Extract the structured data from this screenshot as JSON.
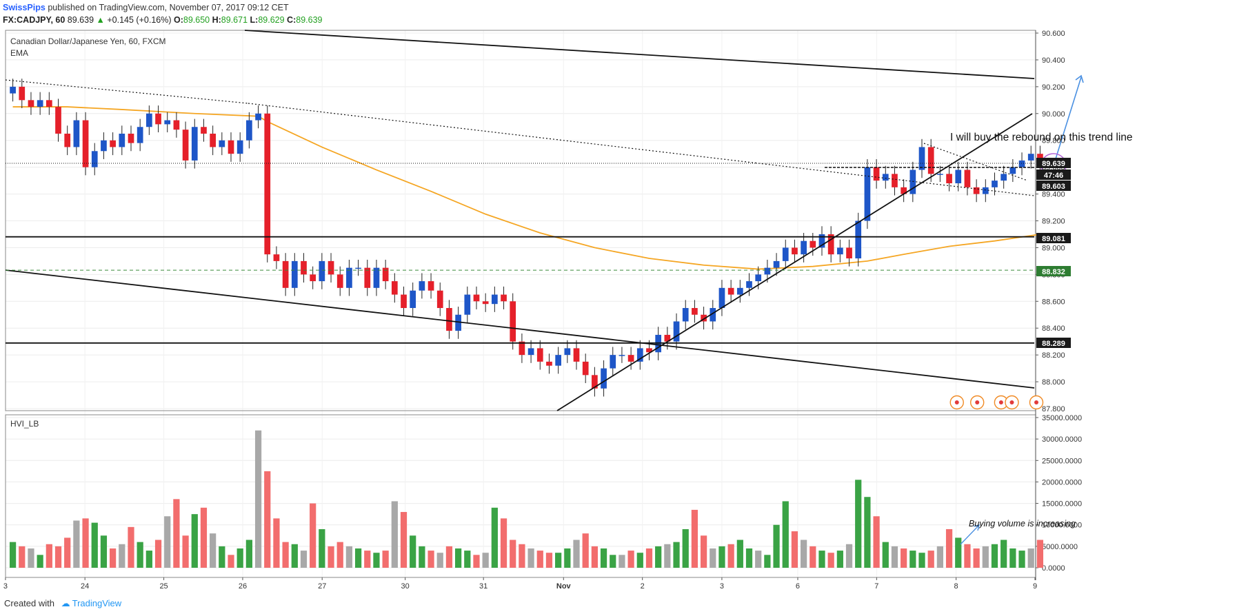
{
  "header": {
    "author": "SwissPips",
    "published": "published on TradingView.com, November 07, 2017 09:12 CET"
  },
  "symbol_line": {
    "symbol": "FX:CADJPY, 60",
    "last": "89.639",
    "change_arrow": "▲",
    "change": "+0.145 (+0.16%)",
    "o_label": "O:",
    "o": "89.650",
    "h_label": "H:",
    "h": "89.671",
    "l_label": "L:",
    "l": "89.629",
    "c_label": "C:",
    "c": "89.639"
  },
  "footer": {
    "created_with": "Created with",
    "brand": "TradingView"
  },
  "colors": {
    "up": "#1e56c8",
    "down": "#e5202a",
    "ema": "#f5a623",
    "vol_up": "#3aa345",
    "vol_down": "#f26d6d",
    "vol_neutral": "#a8a8a8",
    "arrow": "#4a90e2",
    "ellipse": "#b366d6",
    "marker": "#f08a24"
  },
  "chart_data": [
    {
      "type": "candlestick",
      "title": "Canadian Dollar/Japanese Yen, 60, FXCM",
      "indicator": "EMA",
      "ylim": [
        87.8,
        90.6
      ],
      "y_ticks": [
        "90.600",
        "90.400",
        "90.200",
        "90.000",
        "89.800",
        "89.600",
        "89.400",
        "89.200",
        "89.000",
        "88.800",
        "88.600",
        "88.400",
        "88.200",
        "88.000",
        "87.800"
      ],
      "x_ticks": [
        "3",
        "24",
        "25",
        "26",
        "27",
        "30",
        "31",
        "Nov",
        "2",
        "3",
        "6",
        "7",
        "8",
        "9"
      ],
      "price_tags": [
        {
          "value": 89.639,
          "label": "89.639",
          "style": "dark"
        },
        {
          "value": 89.551,
          "label": "47:46",
          "style": "dark"
        },
        {
          "value": 89.603,
          "label": "89.603",
          "style": "dark"
        },
        {
          "value": 89.081,
          "label": "89.081",
          "style": "dark"
        },
        {
          "value": 88.832,
          "label": "88.832",
          "style": "green"
        },
        {
          "value": 88.289,
          "label": "88.289",
          "style": "dark"
        }
      ],
      "horizontal_levels": [
        89.081,
        88.289
      ],
      "dashed_levels": [
        88.832
      ],
      "annotation": "I will buy the rebound on this trend line",
      "ema_points": [
        [
          0,
          90.05
        ],
        [
          6,
          90.05
        ],
        [
          12,
          90.03
        ],
        [
          20,
          90.0
        ],
        [
          27,
          89.98
        ],
        [
          28,
          89.94
        ],
        [
          34,
          89.75
        ],
        [
          40,
          89.58
        ],
        [
          46,
          89.42
        ],
        [
          52,
          89.25
        ],
        [
          58,
          89.11
        ],
        [
          64,
          89.0
        ],
        [
          70,
          88.92
        ],
        [
          76,
          88.87
        ],
        [
          82,
          88.84
        ],
        [
          88,
          88.86
        ],
        [
          94,
          88.9
        ],
        [
          98,
          88.95
        ],
        [
          103,
          89.01
        ],
        [
          108,
          89.05
        ],
        [
          113,
          89.1
        ]
      ],
      "closes": [
        90.2,
        90.1,
        90.05,
        90.1,
        90.05,
        89.85,
        89.75,
        89.95,
        89.6,
        89.72,
        89.8,
        89.75,
        89.85,
        89.78,
        89.9,
        90.0,
        89.92,
        89.95,
        89.88,
        89.65,
        89.9,
        89.85,
        89.75,
        89.8,
        89.7,
        89.8,
        89.95,
        90.0,
        88.95,
        88.9,
        88.7,
        88.9,
        88.8,
        88.75,
        88.9,
        88.8,
        88.7,
        88.85,
        88.85,
        88.7,
        88.85,
        88.75,
        88.65,
        88.55,
        88.68,
        88.75,
        88.68,
        88.55,
        88.38,
        88.5,
        88.65,
        88.6,
        88.58,
        88.65,
        88.6,
        88.3,
        88.2,
        88.25,
        88.15,
        88.12,
        88.2,
        88.25,
        88.15,
        88.05,
        87.95,
        88.1,
        88.2,
        88.2,
        88.15,
        88.25,
        88.22,
        88.35,
        88.3,
        88.45,
        88.55,
        88.5,
        88.45,
        88.55,
        88.7,
        88.65,
        88.7,
        88.75,
        88.8,
        88.85,
        88.9,
        89.0,
        88.95,
        89.05,
        89.0,
        89.1,
        88.95,
        89.0,
        88.92,
        89.2,
        89.6,
        89.5,
        89.55,
        89.45,
        89.4,
        89.58,
        89.75,
        89.55,
        89.55,
        89.48,
        89.58,
        89.45,
        89.4,
        89.45,
        89.5,
        89.55,
        89.6,
        89.65,
        89.7,
        89.639
      ],
      "volumes": [
        6000,
        5000,
        4500,
        3000,
        5500,
        5000,
        7000,
        11000,
        11500,
        10500,
        7500,
        4500,
        5500,
        9500,
        6000,
        4000,
        6500,
        12000,
        16000,
        7500,
        12500,
        14000,
        8000,
        5000,
        3000,
        4500,
        6500,
        32000,
        22500,
        11500,
        6000,
        5500,
        4000,
        15000,
        9000,
        5000,
        6000,
        5000,
        4500,
        4000,
        3500,
        4000,
        15500,
        13000,
        7500,
        5000,
        4000,
        3500,
        5000,
        4500,
        4000,
        3000,
        3500,
        14000,
        11500,
        6500,
        5500,
        4500,
        4000,
        3500,
        3500,
        4500,
        6500,
        8000,
        5000,
        4500,
        3000,
        3000,
        4000,
        3500,
        4500,
        5000,
        5500,
        6000,
        9000,
        13500,
        7500,
        4500,
        5000,
        5500,
        6500,
        4500,
        4000,
        3000,
        10000,
        15500,
        8500,
        6500,
        5000,
        4000,
        3500,
        4000,
        5500,
        20500,
        16500,
        12000,
        6000,
        5000,
        4500,
        4000,
        3500,
        4000,
        5000,
        9000,
        7000,
        5500,
        4500,
        5000,
        5500,
        6500,
        4500,
        4000,
        4500,
        6500
      ],
      "volume_ylim": [
        0,
        35000
      ]
    },
    {
      "type": "bar",
      "title": "HVI_LB",
      "y_ticks": [
        "35000.0000",
        "30000.0000",
        "25000.0000",
        "20000.0000",
        "15000.0000",
        "10000.0000",
        "5000.0000",
        "0.0000"
      ],
      "annotation": "Buying volume is increasing"
    }
  ]
}
